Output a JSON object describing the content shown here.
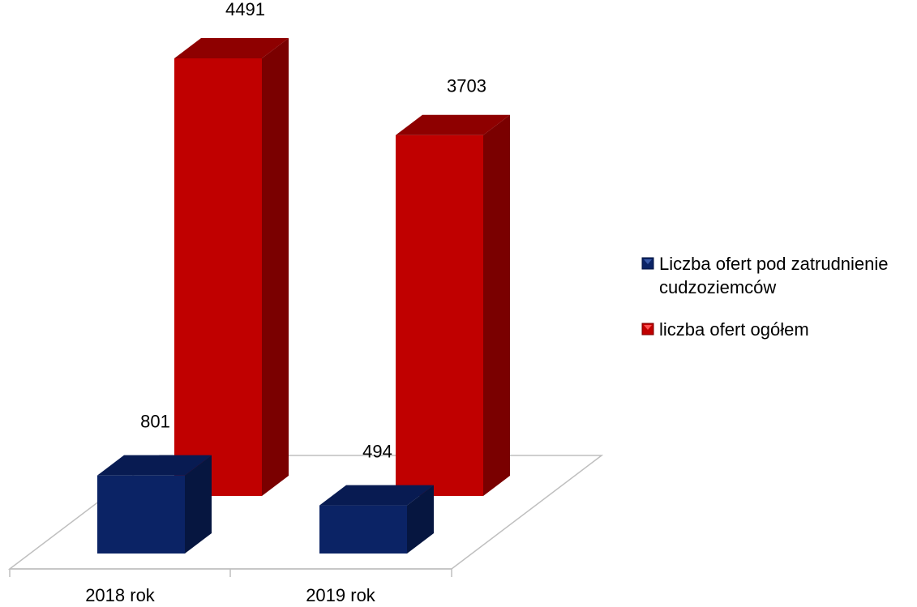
{
  "chart_data": {
    "type": "bar",
    "style": "3d-column",
    "categories": [
      "2018 rok",
      "2019 rok"
    ],
    "series": [
      {
        "name": "Liczba ofert pod zatrudnienie cudzoziemców",
        "legend_lines": [
          "Liczba ofert pod zatrudnienie",
          "cudzoziemców"
        ],
        "values": [
          801,
          494
        ],
        "color": "#0b2365",
        "color_side": "#061640",
        "color_top": "#081b52"
      },
      {
        "name": "liczba ofert ogółem",
        "legend_lines": [
          "liczba ofert ogółem"
        ],
        "values": [
          4491,
          3703
        ],
        "color": "#c00000",
        "color_side": "#7a0000",
        "color_top": "#8e0000"
      }
    ],
    "data_labels": [
      [
        "801",
        "494"
      ],
      [
        "4491",
        "3703"
      ]
    ],
    "ylim": [
      0,
      4491
    ],
    "grid": false,
    "legend_position": "right"
  }
}
